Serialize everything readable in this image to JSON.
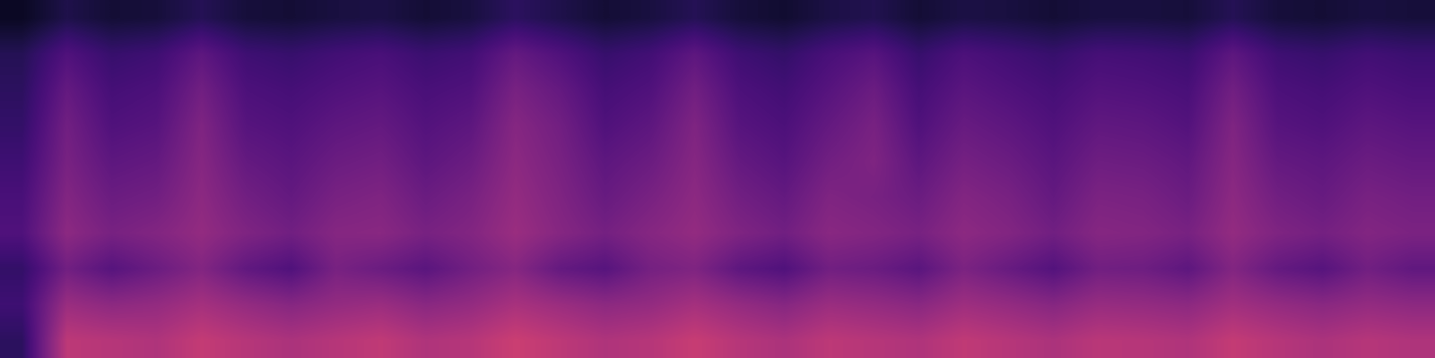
{
  "chart_data": {
    "type": "heatmap",
    "color": "magma",
    "tick_labels": false,
    "color_range": [
      0,
      1.2
    ],
    "cells": [
      [
        0.2,
        0.62,
        0.6,
        0.58,
        0.64,
        0.6,
        0.57,
        0.6,
        0.63,
        0.58,
        0.6,
        0.66,
        0.62,
        0.58,
        0.6,
        0.65,
        0.6,
        0.57,
        0.62,
        0.6,
        0.58,
        0.63,
        0.6,
        0.57,
        0.61,
        0.6,
        0.58,
        0.64,
        0.6,
        0.57,
        0.6,
        0.58
      ],
      [
        0.25,
        0.52,
        0.48,
        0.5,
        0.55,
        0.5,
        0.46,
        0.5,
        0.52,
        0.47,
        0.5,
        0.56,
        0.52,
        0.48,
        0.5,
        0.55,
        0.5,
        0.46,
        0.52,
        0.5,
        0.47,
        0.53,
        0.5,
        0.46,
        0.51,
        0.5,
        0.48,
        0.54,
        0.5,
        0.47,
        0.5,
        0.48
      ],
      [
        0.22,
        0.4,
        0.32,
        0.38,
        0.45,
        0.35,
        0.3,
        0.42,
        0.38,
        0.33,
        0.4,
        0.46,
        0.36,
        0.32,
        0.41,
        0.44,
        0.34,
        0.3,
        0.4,
        0.38,
        0.33,
        0.43,
        0.37,
        0.31,
        0.4,
        0.39,
        0.34,
        0.45,
        0.36,
        0.32,
        0.4,
        0.35
      ],
      [
        0.3,
        0.48,
        0.42,
        0.45,
        0.5,
        0.44,
        0.4,
        0.46,
        0.47,
        0.42,
        0.45,
        0.52,
        0.46,
        0.41,
        0.46,
        0.5,
        0.44,
        0.4,
        0.47,
        0.45,
        0.42,
        0.48,
        0.45,
        0.4,
        0.46,
        0.45,
        0.42,
        0.5,
        0.44,
        0.41,
        0.45,
        0.43
      ],
      [
        0.28,
        0.45,
        0.38,
        0.4,
        0.48,
        0.4,
        0.36,
        0.42,
        0.44,
        0.38,
        0.42,
        0.5,
        0.44,
        0.37,
        0.42,
        0.48,
        0.4,
        0.36,
        0.44,
        0.42,
        0.38,
        0.45,
        0.42,
        0.36,
        0.43,
        0.42,
        0.38,
        0.48,
        0.4,
        0.37,
        0.42,
        0.4
      ],
      [
        0.25,
        0.42,
        0.34,
        0.36,
        0.46,
        0.36,
        0.33,
        0.38,
        0.4,
        0.34,
        0.38,
        0.48,
        0.42,
        0.34,
        0.38,
        0.46,
        0.36,
        0.32,
        0.4,
        0.44,
        0.34,
        0.41,
        0.38,
        0.33,
        0.39,
        0.38,
        0.35,
        0.46,
        0.36,
        0.34,
        0.38,
        0.36
      ],
      [
        0.22,
        0.4,
        0.3,
        0.32,
        0.44,
        0.32,
        0.3,
        0.34,
        0.36,
        0.31,
        0.34,
        0.46,
        0.4,
        0.3,
        0.34,
        0.44,
        0.32,
        0.29,
        0.36,
        0.42,
        0.3,
        0.37,
        0.34,
        0.3,
        0.35,
        0.34,
        0.31,
        0.44,
        0.32,
        0.3,
        0.34,
        0.32
      ],
      [
        0.2,
        0.36,
        0.27,
        0.29,
        0.4,
        0.29,
        0.27,
        0.3,
        0.32,
        0.28,
        0.3,
        0.42,
        0.36,
        0.27,
        0.3,
        0.4,
        0.29,
        0.26,
        0.32,
        0.38,
        0.27,
        0.33,
        0.3,
        0.27,
        0.31,
        0.3,
        0.28,
        0.4,
        0.29,
        0.27,
        0.3,
        0.28
      ],
      [
        0.18,
        0.3,
        0.23,
        0.25,
        0.34,
        0.25,
        0.23,
        0.26,
        0.28,
        0.24,
        0.26,
        0.36,
        0.3,
        0.23,
        0.26,
        0.34,
        0.25,
        0.22,
        0.28,
        0.32,
        0.23,
        0.29,
        0.26,
        0.23,
        0.27,
        0.26,
        0.24,
        0.34,
        0.25,
        0.23,
        0.26,
        0.24
      ],
      [
        0.08,
        0.16,
        0.12,
        0.13,
        0.18,
        0.13,
        0.12,
        0.14,
        0.15,
        0.12,
        0.14,
        0.2,
        0.16,
        0.12,
        0.14,
        0.18,
        0.13,
        0.11,
        0.15,
        0.17,
        0.12,
        0.15,
        0.14,
        0.12,
        0.14,
        0.14,
        0.13,
        0.18,
        0.13,
        0.12,
        0.14,
        0.13
      ]
    ]
  }
}
